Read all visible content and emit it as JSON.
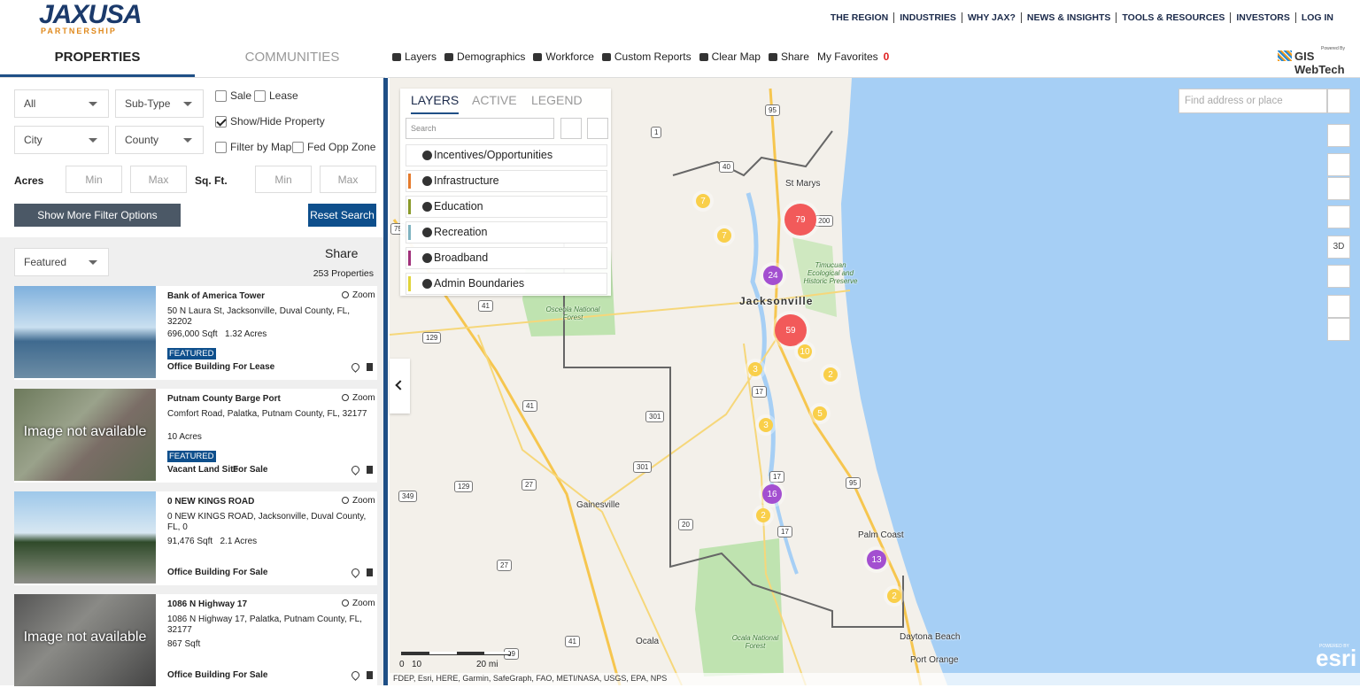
{
  "header": {
    "logo": "JAXUSA",
    "logo_sub": "PARTNERSHIP",
    "nav": [
      "THE REGION",
      "INDUSTRIES",
      "WHY JAX?",
      "NEWS & INSIGHTS",
      "TOOLS & RESOURCES",
      "INVESTORS",
      "LOG IN"
    ]
  },
  "sidebar": {
    "tabs": [
      "PROPERTIES",
      "COMMUNITIES"
    ],
    "filters": {
      "type": "All",
      "subtype": "Sub-Type",
      "city": "City",
      "county": "County",
      "checkboxes": [
        {
          "label": "Sale",
          "checked": false
        },
        {
          "label": "Lease",
          "checked": false
        },
        {
          "label": "Show/Hide Property",
          "checked": true
        },
        {
          "label": "Filter by Map",
          "checked": false
        },
        {
          "label": "Fed Opp Zone",
          "checked": false
        }
      ],
      "acres_label": "Acres",
      "sqft_label": "Sq. Ft.",
      "min": "Min",
      "max": "Max",
      "more_button": "Show More Filter Options",
      "reset_button": "Reset Search"
    },
    "sort": "Featured",
    "share": "Share",
    "count": "253 Properties",
    "listings": [
      {
        "title": "Bank of America Tower",
        "address": "50 N Laura St, Jacksonville, Duval County, FL, 32202",
        "stats": "696,000 Sqft   1.32 Acres",
        "badge": "FEATURED",
        "category": "Office Building",
        "status": "For Lease",
        "zoom": "Zoom"
      },
      {
        "title": "Putnam County Barge Port",
        "address": "Comfort Road, Palatka, Putnam County, FL, 32177",
        "stats": "10 Acres",
        "badge": "FEATURED",
        "category": "Vacant Land Site",
        "status": "For Sale",
        "zoom": "Zoom",
        "image_text": "Image not available"
      },
      {
        "title": "0 NEW KINGS ROAD",
        "address": "0 NEW KINGS ROAD, Jacksonville, Duval County, FL, 0",
        "stats": "91,476 Sqft   2.1 Acres",
        "category": "Office Building",
        "status": "For Sale",
        "zoom": "Zoom"
      },
      {
        "title": "1086 N Highway 17",
        "address": "1086 N Highway 17, Palatka, Putnam County, FL, 32177",
        "stats": "867 Sqft",
        "category": "Office Building",
        "status": "For Sale",
        "zoom": "Zoom",
        "image_text": "Image not available"
      }
    ]
  },
  "toolbar": {
    "items": [
      "Layers",
      "Demographics",
      "Workforce",
      "Custom Reports",
      "Clear Map",
      "Share",
      "My Favorites"
    ],
    "favorites_count": "0",
    "powered_by": "Powered By",
    "brand": "GIS WebTech"
  },
  "map": {
    "layer_tabs": [
      "LAYERS",
      "ACTIVE",
      "LEGEND"
    ],
    "layer_search": "Search",
    "layers": [
      {
        "name": "Incentives/Opportunities"
      },
      {
        "name": "Infrastructure",
        "color": "#e57b2c"
      },
      {
        "name": "Education",
        "color": "#8a9a2a"
      },
      {
        "name": "Recreation",
        "color": "#7fb3c0"
      },
      {
        "name": "Broadband",
        "color": "#a0307a"
      },
      {
        "name": "Admin Boundaries",
        "color": "#e0d43a"
      }
    ],
    "search_placeholder": "Find address or place",
    "control_3d": "3D",
    "clusters": [
      {
        "label": "79",
        "color": "#f25a5a"
      },
      {
        "label": "24",
        "color": "#a34fd0"
      },
      {
        "label": "59",
        "color": "#f25a5a"
      },
      {
        "label": "16",
        "color": "#a34fd0"
      },
      {
        "label": "13",
        "color": "#a34fd0"
      },
      {
        "label": "7",
        "color": "#f9cf4a"
      },
      {
        "label": "7",
        "color": "#f9cf4a"
      },
      {
        "label": "3",
        "color": "#f9cf4a"
      },
      {
        "label": "10",
        "color": "#f9cf4a"
      },
      {
        "label": "2",
        "color": "#f9cf4a"
      },
      {
        "label": "5",
        "color": "#f9cf4a"
      },
      {
        "label": "3",
        "color": "#f9cf4a"
      },
      {
        "label": "2",
        "color": "#f9cf4a"
      },
      {
        "label": "2",
        "color": "#f9cf4a"
      }
    ],
    "places": [
      "St Marys",
      "Jacksonville",
      "Osceola National Forest",
      "Timucuan Ecological and Historic Preserve",
      "Gainesville",
      "Palm Coast",
      "Ocala",
      "Ocala National Forest",
      "Daytona Beach",
      "Port Orange"
    ],
    "routes": [
      "1",
      "40",
      "95",
      "75",
      "200",
      "41",
      "129",
      "301",
      "41",
      "17",
      "301",
      "129",
      "27",
      "349",
      "17",
      "20",
      "17",
      "27",
      "41",
      "19",
      "95"
    ],
    "scale": [
      "0",
      "10",
      "20 mi"
    ],
    "attribution": "FDEP, Esri, HERE, Garmin, SafeGraph, FAO, METI/NASA, USGS, EPA, NPS",
    "esri_powered": "POWERED BY",
    "esri": "esri"
  }
}
